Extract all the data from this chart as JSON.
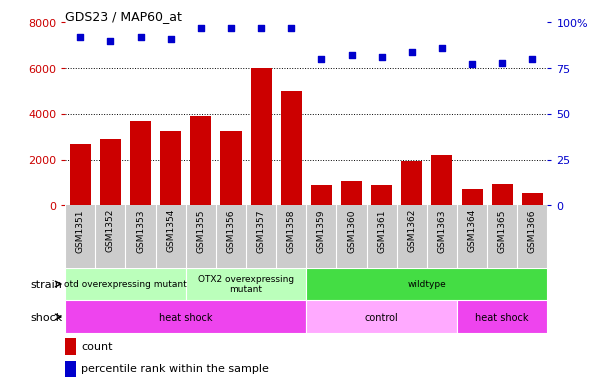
{
  "title": "GDS23 / MAP60_at",
  "categories": [
    "GSM1351",
    "GSM1352",
    "GSM1353",
    "GSM1354",
    "GSM1355",
    "GSM1356",
    "GSM1357",
    "GSM1358",
    "GSM1359",
    "GSM1360",
    "GSM1361",
    "GSM1362",
    "GSM1363",
    "GSM1364",
    "GSM1365",
    "GSM1366"
  ],
  "counts": [
    2700,
    2900,
    3700,
    3250,
    3900,
    3250,
    6000,
    5000,
    900,
    1050,
    900,
    1950,
    2200,
    700,
    950,
    550
  ],
  "percentiles": [
    92,
    90,
    92,
    91,
    97,
    97,
    97,
    97,
    80,
    82,
    81,
    84,
    86,
    77,
    78,
    80
  ],
  "bar_color": "#cc0000",
  "dot_color": "#0000cc",
  "left_ylim": [
    0,
    8000
  ],
  "right_ylim": [
    0,
    100
  ],
  "left_yticks": [
    0,
    2000,
    4000,
    6000,
    8000
  ],
  "right_yticks": [
    0,
    25,
    50,
    75,
    100
  ],
  "right_yticklabels": [
    "0",
    "25",
    "50",
    "75",
    "100%"
  ],
  "strain_groups": [
    {
      "label": "otd overexpressing mutant",
      "start": 0,
      "end": 4,
      "color": "#bbffbb"
    },
    {
      "label": "OTX2 overexpressing\nmutant",
      "start": 4,
      "end": 8,
      "color": "#bbffbb"
    },
    {
      "label": "wildtype",
      "start": 8,
      "end": 16,
      "color": "#44dd44"
    }
  ],
  "shock_groups": [
    {
      "label": "heat shock",
      "start": 0,
      "end": 8,
      "color": "#ee44ee"
    },
    {
      "label": "control",
      "start": 8,
      "end": 13,
      "color": "#ffaaff"
    },
    {
      "label": "heat shock",
      "start": 13,
      "end": 16,
      "color": "#ee44ee"
    }
  ],
  "strain_label": "strain",
  "shock_label": "shock",
  "legend_count_label": "count",
  "legend_pct_label": "percentile rank within the sample",
  "tick_label_bg": "#cccccc",
  "plot_bg": "#ffffff"
}
